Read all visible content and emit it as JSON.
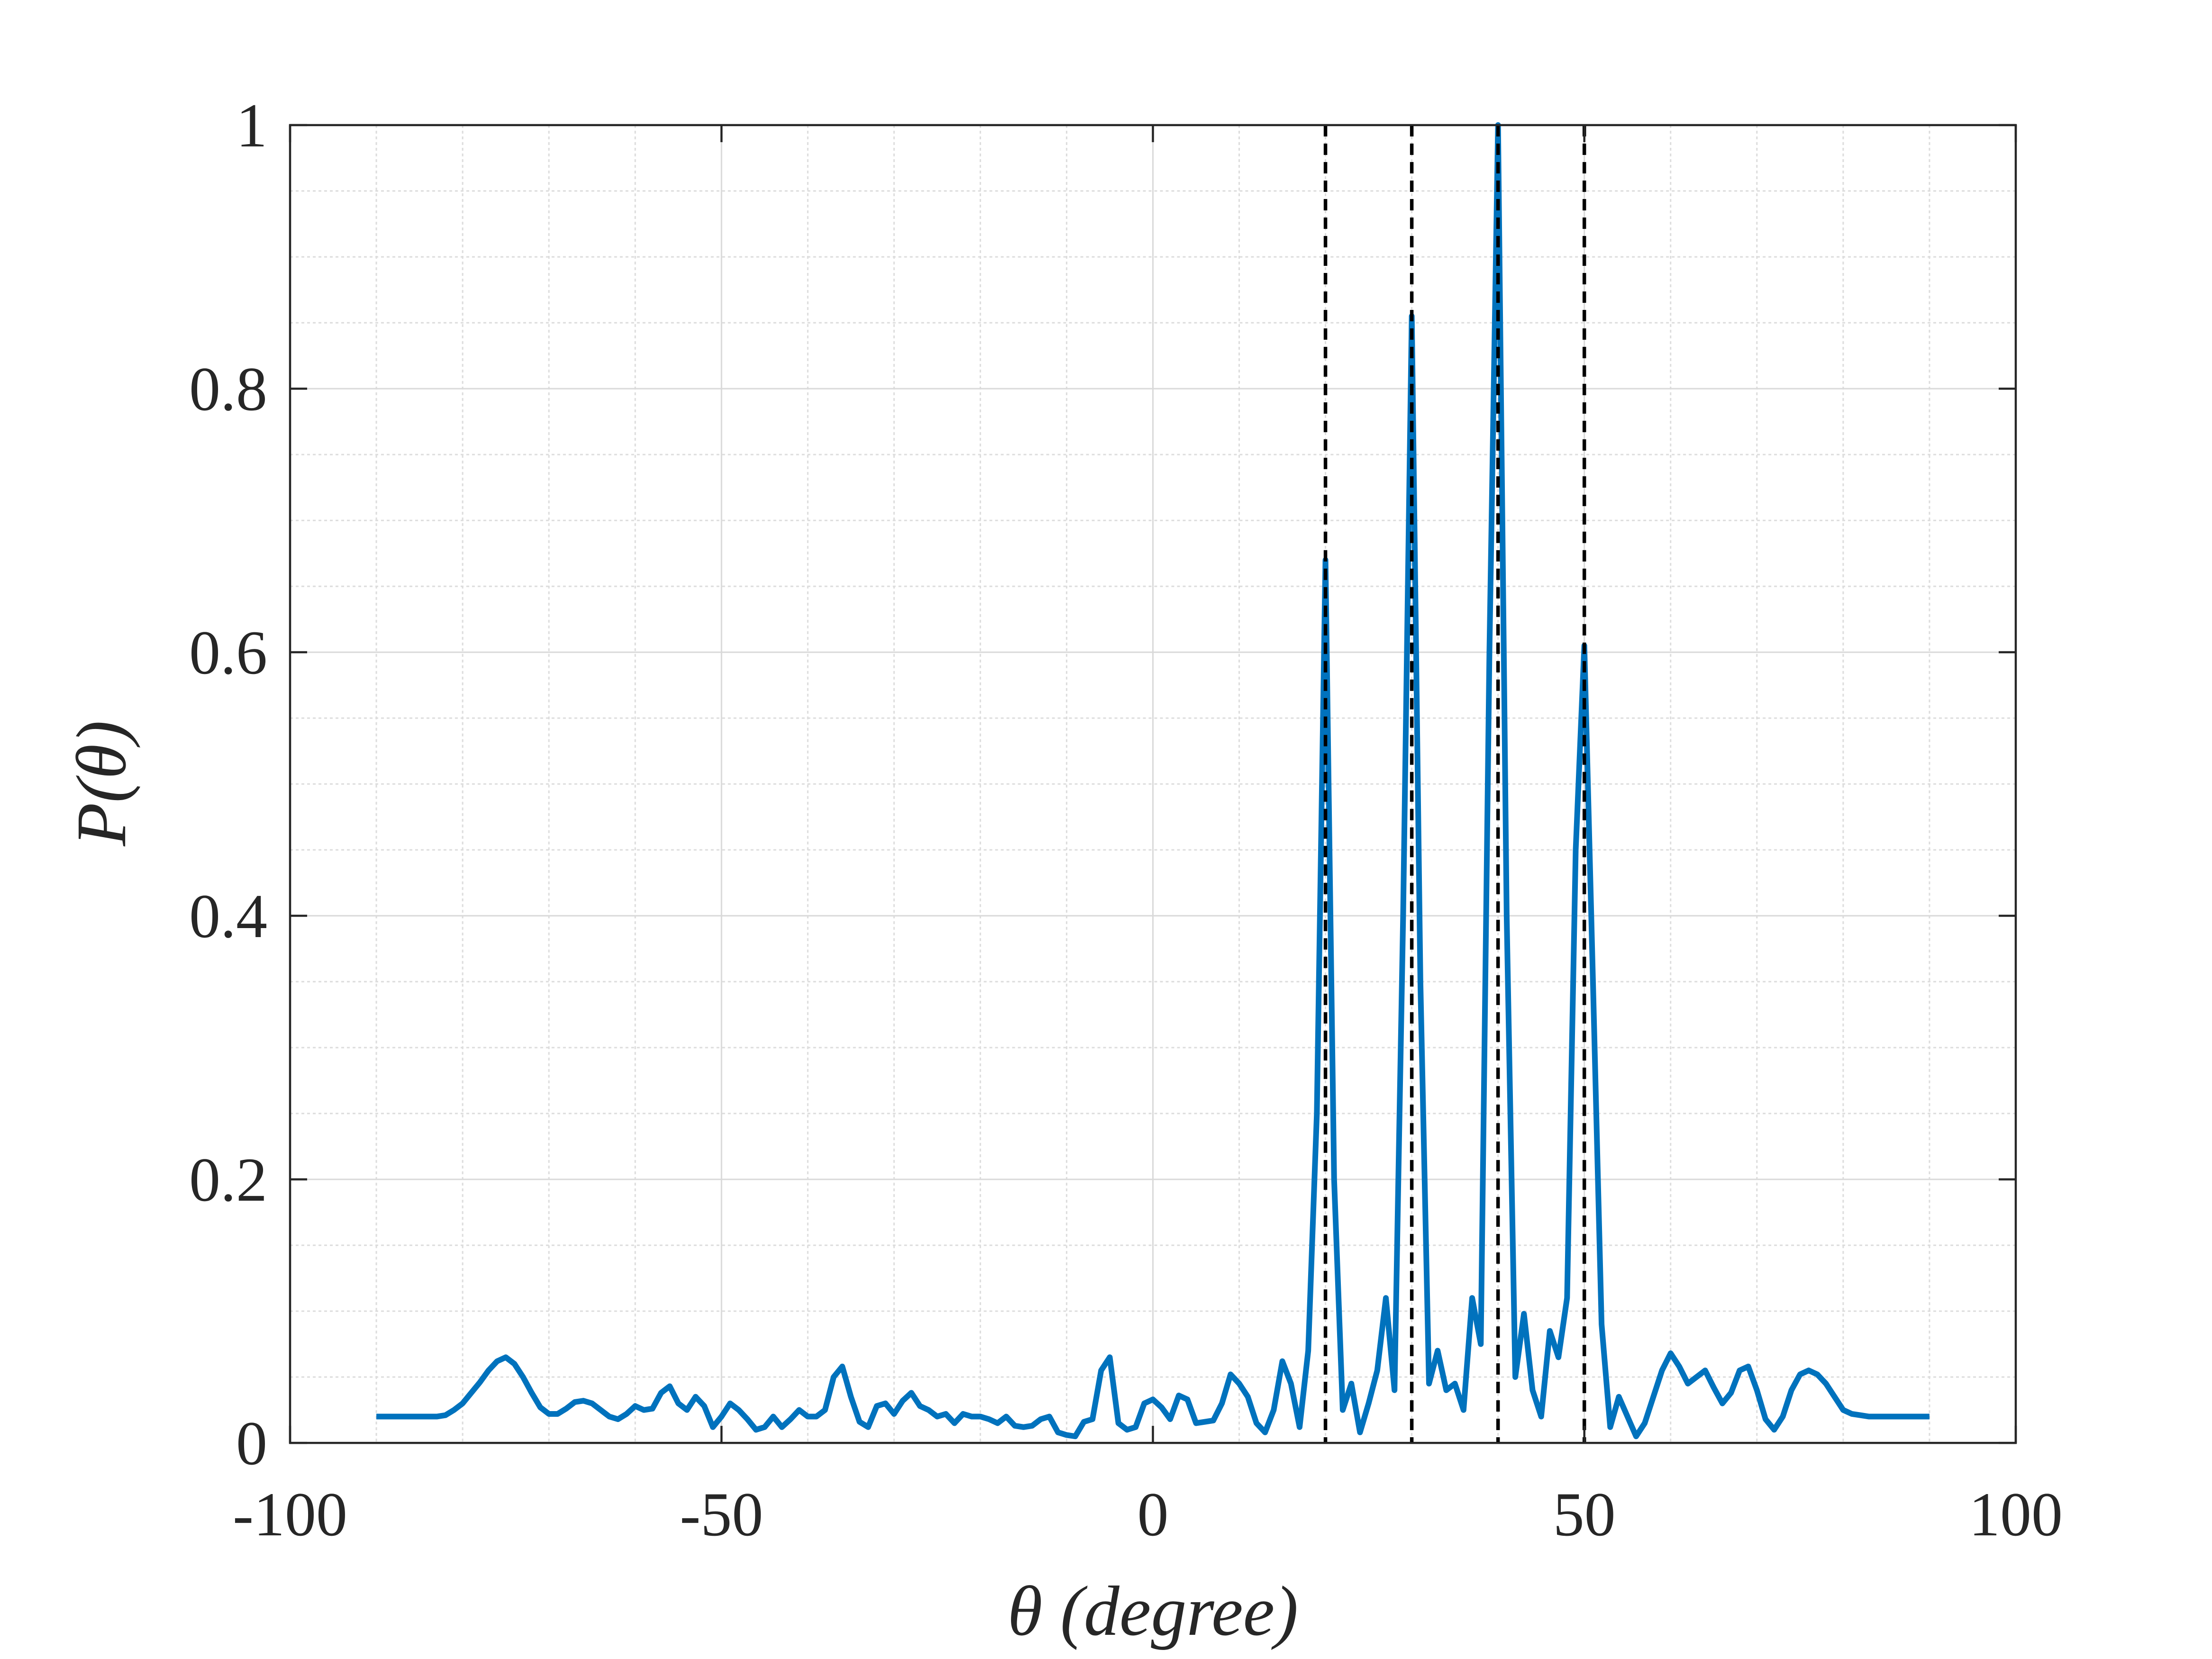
{
  "chart_data": {
    "type": "line",
    "xlabel": "θ (degree)",
    "ylabel": "P(θ)",
    "x": [
      -90,
      -89,
      -88,
      -87,
      -86,
      -85,
      -84,
      -83,
      -82,
      -81,
      -80,
      -79,
      -78,
      -77,
      -76,
      -75,
      -74,
      -73,
      -72,
      -71,
      -70,
      -69,
      -68,
      -67,
      -66,
      -65,
      -64,
      -63,
      -62,
      -61,
      -60,
      -59,
      -58,
      -57,
      -56,
      -55,
      -54,
      -53,
      -52,
      -51,
      -50,
      -49,
      -48,
      -47,
      -46,
      -45,
      -44,
      -43,
      -42,
      -41,
      -40,
      -39,
      -38,
      -37,
      -36,
      -35,
      -34,
      -33,
      -32,
      -31,
      -30,
      -29,
      -28,
      -27,
      -26,
      -25,
      -24,
      -23,
      -22,
      -21,
      -20,
      -19,
      -18,
      -17,
      -16,
      -15,
      -14,
      -13,
      -12,
      -11,
      -10,
      -9,
      -8,
      -7,
      -6,
      -5,
      -4,
      -3,
      -2,
      -1,
      0,
      1,
      2,
      3,
      4,
      5,
      6,
      7,
      8,
      9,
      10,
      11,
      12,
      13,
      14,
      15,
      16,
      17,
      18,
      19,
      20,
      21,
      22,
      23,
      24,
      25,
      26,
      27,
      28,
      29,
      30,
      31,
      32,
      33,
      34,
      35,
      36,
      37,
      38,
      39,
      40,
      41,
      42,
      43,
      44,
      45,
      46,
      47,
      48,
      49,
      50,
      51,
      52,
      53,
      54,
      55,
      56,
      57,
      58,
      59,
      60,
      61,
      62,
      63,
      64,
      65,
      66,
      67,
      68,
      69,
      70,
      71,
      72,
      73,
      74,
      75,
      76,
      77,
      78,
      79,
      80,
      81,
      82,
      83,
      84,
      85,
      86,
      87,
      88,
      89,
      90
    ],
    "values": [
      0.02,
      0.02,
      0.02,
      0.02,
      0.02,
      0.02,
      0.02,
      0.02,
      0.021,
      0.025,
      0.03,
      0.038,
      0.046,
      0.055,
      0.062,
      0.065,
      0.06,
      0.05,
      0.038,
      0.027,
      0.022,
      0.022,
      0.026,
      0.031,
      0.032,
      0.03,
      0.025,
      0.02,
      0.018,
      0.022,
      0.028,
      0.025,
      0.026,
      0.038,
      0.043,
      0.03,
      0.025,
      0.035,
      0.028,
      0.012,
      0.02,
      0.03,
      0.025,
      0.018,
      0.01,
      0.012,
      0.02,
      0.012,
      0.018,
      0.025,
      0.02,
      0.02,
      0.025,
      0.05,
      0.058,
      0.035,
      0.016,
      0.012,
      0.028,
      0.03,
      0.022,
      0.032,
      0.038,
      0.028,
      0.025,
      0.02,
      0.022,
      0.015,
      0.022,
      0.02,
      0.02,
      0.018,
      0.015,
      0.02,
      0.013,
      0.012,
      0.013,
      0.018,
      0.02,
      0.008,
      0.006,
      0.005,
      0.016,
      0.018,
      0.055,
      0.065,
      0.015,
      0.01,
      0.012,
      0.03,
      0.033,
      0.027,
      0.018,
      0.036,
      0.033,
      0.015,
      0.016,
      0.017,
      0.03,
      0.052,
      0.045,
      0.035,
      0.015,
      0.008,
      0.025,
      0.062,
      0.045,
      0.012,
      0.07,
      0.25,
      0.67,
      0.2,
      0.025,
      0.045,
      0.008,
      0.03,
      0.055,
      0.11,
      0.04,
      0.4,
      0.855,
      0.35,
      0.045,
      0.07,
      0.04,
      0.045,
      0.025,
      0.11,
      0.075,
      0.6,
      1.0,
      0.4,
      0.05,
      0.098,
      0.04,
      0.02,
      0.085,
      0.065,
      0.11,
      0.45,
      0.605,
      0.35,
      0.09,
      0.012,
      0.035,
      0.02,
      0.005,
      0.015,
      0.035,
      0.055,
      0.068,
      0.058,
      0.045,
      0.05,
      0.055,
      0.042,
      0.03,
      0.038,
      0.055,
      0.058,
      0.04,
      0.018,
      0.01,
      0.02,
      0.04,
      0.052,
      0.055,
      0.052,
      0.045,
      0.035,
      0.025,
      0.022,
      0.021,
      0.02,
      0.02,
      0.02,
      0.02,
      0.02,
      0.02,
      0.02,
      0.02
    ],
    "color": "#0072bd",
    "vlines": [
      20,
      30,
      40,
      50
    ],
    "vline_color": "#000000",
    "xlim": [
      -100,
      100
    ],
    "xticks": [
      -100,
      -50,
      0,
      50,
      100
    ],
    "ylim": [
      0,
      1
    ],
    "yticks": [
      0,
      0.2,
      0.4,
      0.6,
      0.8,
      1
    ],
    "grid": true,
    "minor_grid": true
  }
}
